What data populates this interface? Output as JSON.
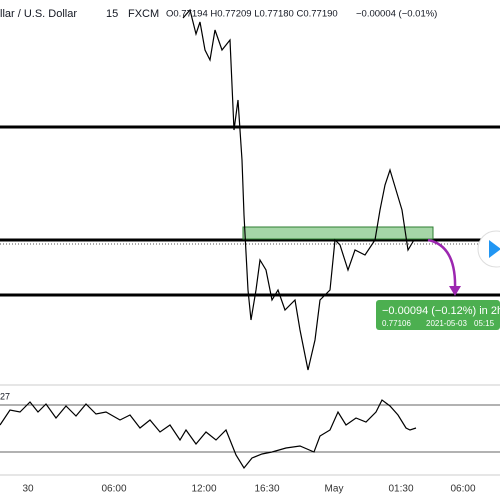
{
  "header": {
    "symbol": "llar / U.S. Dollar",
    "interval": "15",
    "exchange": "FXCM",
    "ohlc": "O0.77194 H0.77209 L0.77180 C0.77190",
    "change": "−0.00004 (−0.01%)"
  },
  "projection": {
    "change": "−0.00094 (−0.12%) in 2h",
    "price": "0.77106",
    "time": "2021-05-03",
    "clock": "05:15"
  },
  "oscillator": {
    "label": "27"
  },
  "time_axis": [
    "30",
    "06:00",
    "12:00",
    "16:30",
    "May",
    "01:30",
    "06:00"
  ]
}
